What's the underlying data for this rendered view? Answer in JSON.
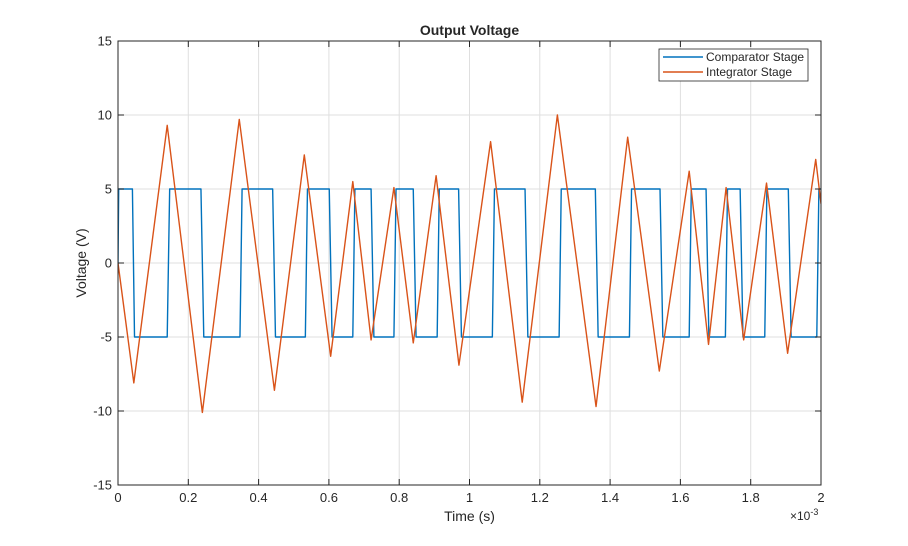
{
  "chart_data": {
    "type": "line",
    "title": "Output Voltage",
    "xlabel": "Time (s)",
    "ylabel": "Voltage (V)",
    "x_exponent_base": "×10",
    "x_exponent_power": "-3",
    "xlim": [
      0,
      2
    ],
    "ylim": [
      -15,
      15
    ],
    "x_ticks": [
      0,
      0.2,
      0.4,
      0.6,
      0.8,
      1,
      1.2,
      1.4,
      1.6,
      1.8,
      2
    ],
    "x_tick_labels": [
      "0",
      "0.2",
      "0.4",
      "0.6",
      "0.8",
      "1",
      "1.2",
      "1.4",
      "1.6",
      "1.8",
      "2"
    ],
    "y_ticks": [
      -15,
      -10,
      -5,
      0,
      5,
      10,
      15
    ],
    "y_tick_labels": [
      "-15",
      "-10",
      "-5",
      "0",
      "5",
      "10",
      "15"
    ],
    "grid": true,
    "legend_position": "top-right",
    "series": [
      {
        "name": "Comparator Stage",
        "color": "#0072BD",
        "x": [
          0,
          0.002,
          0.004,
          0.041,
          0.047,
          0.14,
          0.147,
          0.236,
          0.244,
          0.347,
          0.353,
          0.44,
          0.448,
          0.533,
          0.539,
          0.601,
          0.609,
          0.668,
          0.674,
          0.72,
          0.728,
          0.785,
          0.791,
          0.84,
          0.848,
          0.908,
          0.914,
          0.969,
          0.977,
          1.065,
          1.071,
          1.158,
          1.166,
          1.255,
          1.261,
          1.358,
          1.366,
          1.455,
          1.461,
          1.542,
          1.55,
          1.625,
          1.631,
          1.673,
          1.681,
          1.728,
          1.734,
          1.77,
          1.778,
          1.84,
          1.846,
          1.907,
          1.915,
          1.988,
          1.994,
          2.0
        ],
        "y": [
          0,
          5,
          5,
          5,
          -5,
          -5,
          5,
          5,
          -5,
          -5,
          5,
          5,
          -5,
          -5,
          5,
          5,
          -5,
          -5,
          5,
          5,
          -5,
          -5,
          5,
          5,
          -5,
          -5,
          5,
          5,
          -5,
          -5,
          5,
          5,
          -5,
          -5,
          5,
          5,
          -5,
          -5,
          5,
          5,
          -5,
          -5,
          5,
          5,
          -5,
          -5,
          5,
          5,
          -5,
          -5,
          5,
          5,
          -5,
          -5,
          5,
          5
        ]
      },
      {
        "name": "Integrator Stage",
        "color": "#D95319",
        "x": [
          0,
          0.045,
          0.14,
          0.24,
          0.345,
          0.445,
          0.53,
          0.605,
          0.668,
          0.72,
          0.785,
          0.84,
          0.905,
          0.97,
          1.06,
          1.15,
          1.25,
          1.36,
          1.45,
          1.54,
          1.625,
          1.68,
          1.73,
          1.78,
          1.845,
          1.905,
          1.985,
          2.0
        ],
        "y": [
          0,
          -8.1,
          9.3,
          -10.1,
          9.7,
          -8.6,
          7.3,
          -6.3,
          5.5,
          -5.2,
          5.1,
          -5.4,
          5.9,
          -6.9,
          8.2,
          -9.4,
          10.0,
          -9.7,
          8.5,
          -7.3,
          6.2,
          -5.5,
          5.1,
          -5.2,
          5.4,
          -6.1,
          7.0,
          4.0
        ]
      }
    ]
  }
}
